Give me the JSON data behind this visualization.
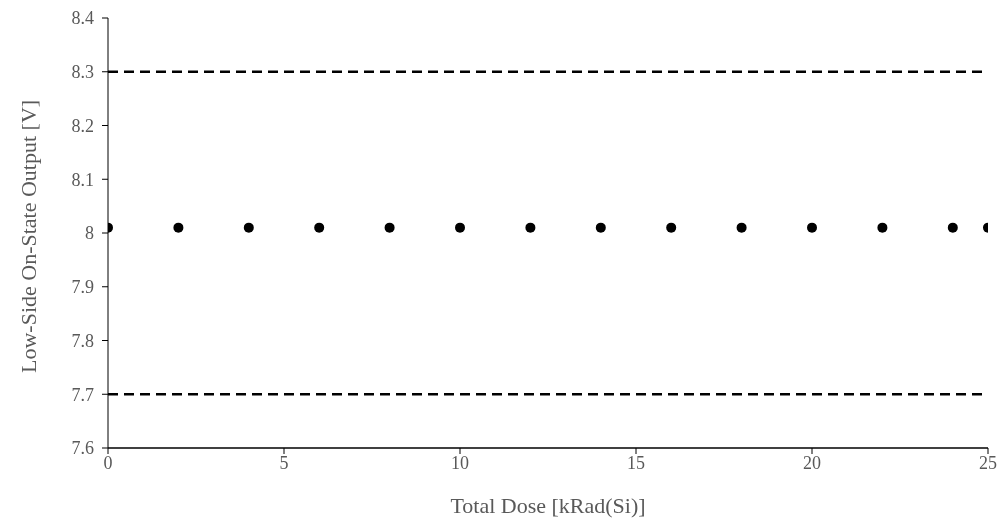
{
  "chart_data": {
    "type": "scatter",
    "xlabel": "Total Dose [kRad(Si)]",
    "ylabel": "Low-Side On-State Output [V]",
    "x": [
      0,
      2,
      4,
      6,
      8,
      10,
      12,
      14,
      16,
      18,
      20,
      22,
      24,
      25
    ],
    "series": [
      {
        "color": "#000000",
        "values": [
          8.01,
          8.01,
          8.01,
          8.01,
          8.01,
          8.01,
          8.01,
          8.01,
          8.01,
          8.01,
          8.01,
          8.01,
          8.01,
          8.01
        ]
      }
    ],
    "xlim": [
      0,
      25
    ],
    "xticks": [
      0,
      5,
      10,
      15,
      20,
      25
    ],
    "ylim": [
      7.6,
      8.4
    ],
    "yticks": [
      7.6,
      7.7,
      7.8,
      7.9,
      8,
      8.1,
      8.2,
      8.3,
      8.4
    ],
    "ref_lines": [
      {
        "axis": "y",
        "value": 8.3,
        "color": "#000000",
        "line_style": "dashed"
      },
      {
        "axis": "y",
        "value": 7.7,
        "color": "#000000",
        "line_style": "dashed"
      }
    ],
    "marker": "circle",
    "grid": false,
    "legend": false
  }
}
